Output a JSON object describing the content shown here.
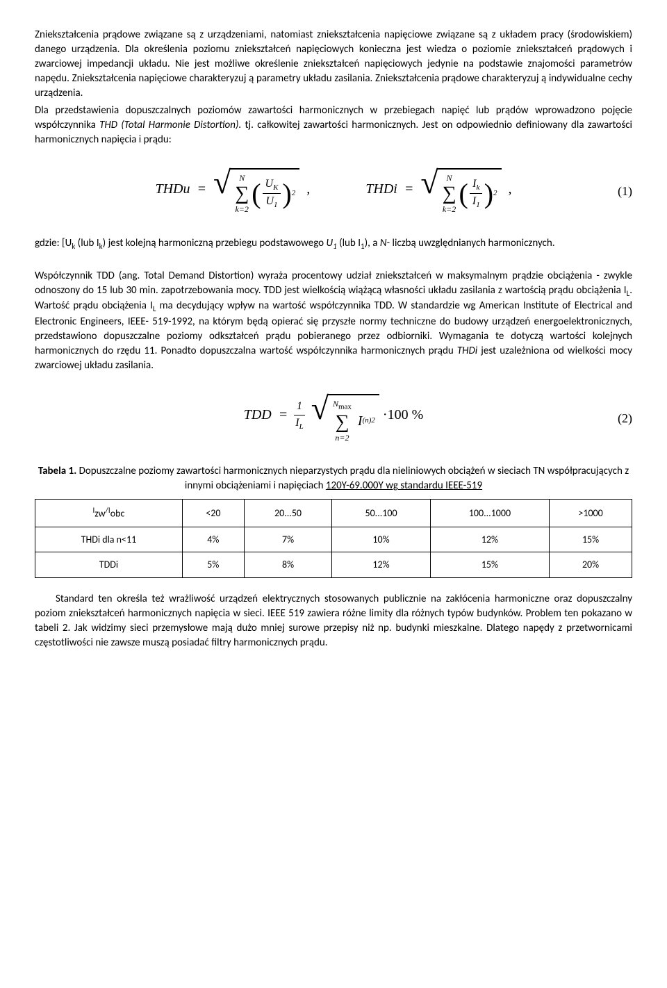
{
  "para1": "Zniekształcenia prądowe związane są z urządzeniami, natomiast zniekształcenia napięciowe związane są z układem pracy (środowiskiem) danego urządzenia. Dla określenia poziomu zniekształceń napięciowych konieczna jest wiedza o poziomie zniekształceń prądowych i zwarciowej impedancji układu. Nie jest możliwe określenie zniekształceń napięciowych jedynie na podstawie znajomości parametrów napędu. Zniekształcenia napięciowe charakteryzuj ą parametry układu zasilania. Zniekształcenia prądowe charakteryzuj ą indywidualne cechy urządzenia.",
  "para2a": "Dla przedstawienia dopuszczalnych poziomów zawartości harmonicznych w przebiegach napięć lub prądów wprowadzono pojęcie współczynnika ",
  "para2b": "THD (Total Harmonie Distortion).",
  "para2c": " tj. całkowitej zawartości harmonicznych. Jest on odpowiednio definiowany dla zawartości harmonicznych napięcia i prądu:",
  "eq1": {
    "lhs1": "THDu",
    "lhs2": "THDi",
    "sum_top": "N",
    "sum_bot": "k=2",
    "frac1_num": "U",
    "frac1_num_sub": "K",
    "frac1_den": "U",
    "frac1_den_sub": "1",
    "frac2_num": "I",
    "frac2_num_sub": "k",
    "frac2_den": "I",
    "frac2_den_sub": "1",
    "exp": "2",
    "num": "(1)"
  },
  "para3a": "gdzie: [U",
  "para3b": " (lub I",
  "para3c": ") jest kolejną harmoniczną przebiegu podstawowego ",
  "para3d": "U",
  "para3e": " (lub I",
  "para3f": "), a ",
  "para3g": "N-",
  "para3h": " liczbą uwzględnianych harmonicznych.",
  "sub_k": "k",
  "sub_1": "1",
  "para4a": "Współczynnik TDD (ang. Total Demand Distortion) wyraża procentowy udział zniekształceń w maksymalnym prądzie obciążenia - zwykle odnoszony do 15 lub 30 min. zapotrzebowania mocy. TDD jest wielkością wiążącą własności układu zasilania z wartością prądu obciążenia I",
  "para4b": ". Wartość prądu obciążenia I",
  "para4c": " ma decydujący wpływ na wartość współczynnika TDD. W standardzie wg American Institute of Electrical and Electronic Engineers, IEEE- 519-1992, na którym będą opierać się przyszłe normy techniczne do budowy urządzeń energoelektronicznych, przedstawiono dopuszczalne poziomy odkształceń prądu pobieranego przez odbiorniki. Wymagania te dotyczą wartości kolejnych harmonicznych do rzędu 11. Ponadto dopuszczalna wartość współczynnika harmonicznych prądu ",
  "para4d": "THDi",
  "para4e": " jest uzależniona od wielkości mocy zwarciowej układu zasilania.",
  "sub_L": "L",
  "eq2": {
    "lhs": "TDD",
    "frac_num": "1",
    "frac_den": "I",
    "frac_den_sub": "L",
    "sum_top": "N",
    "sum_top_sub": "max",
    "sum_bot": "n=2",
    "body": "I",
    "body_sub": "(n)",
    "exp": "2",
    "tail": "·100 %",
    "num": "(2)"
  },
  "tableCaption_a": "Tabela 1.",
  "tableCaption_b": " Dopuszczalne poziomy zawartości harmonicznych nieparzystych prądu dla nieliniowych obciążeń w sieciach TN współpracujących z innymi obciążeniami i napięciach ",
  "tableCaption_c": "120Y-69.000Y wg standardu IEEE-519",
  "table": {
    "header_label": "zw",
    "header_label2": "obc",
    "cols": [
      "<20",
      "20...50",
      "50...100",
      "100...1000",
      ">1000"
    ],
    "row1_label": "THDi dla n<11",
    "row1": [
      "4%",
      "7%",
      "10%",
      "12%",
      "15%"
    ],
    "row2_label": "TDDi",
    "row2": [
      "5%",
      "8%",
      "12%",
      "15%",
      "20%"
    ]
  },
  "para5": "Standard ten określa też wrażliwość urządzeń elektrycznych stosowanych publicznie na zakłócenia harmoniczne oraz dopuszczalny poziom zniekształceń harmonicznych napięcia w sieci. IEEE 519 zawiera różne limity dla różnych typów budynków. Problem ten pokazano w tabeli 2. Jak widzimy sieci przemysłowe mają dużo mniej surowe przepisy niż np. budynki mieszkalne. Dlatego napędy z przetwornicami częstotliwości nie zawsze muszą posiadać filtry harmonicznych prądu."
}
